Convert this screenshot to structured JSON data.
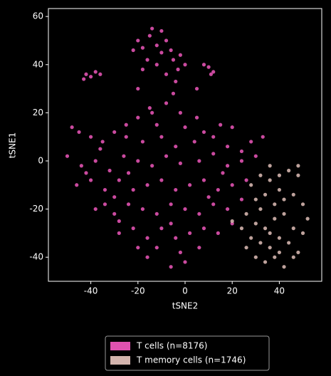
{
  "chart_data": {
    "type": "scatter",
    "xlabel": "tSNE2",
    "ylabel": "tSNE1",
    "xlim": [
      -58,
      58
    ],
    "ylim": [
      -50,
      63.3
    ],
    "xticks": [
      -40,
      -20,
      0,
      20,
      40
    ],
    "yticks": [
      -40,
      -20,
      0,
      20,
      40,
      60
    ],
    "legend": "bottom",
    "series": [
      {
        "name": "T cells (n=8176)",
        "color": "#e052b0",
        "x": [
          -20,
          -18,
          -15,
          -12,
          -10,
          -8,
          -5,
          -3,
          -16,
          -22,
          -14,
          -10,
          -6,
          -2,
          0,
          -12,
          -18,
          -8,
          -4,
          -20,
          -42,
          -40,
          -38,
          -43,
          -36,
          10,
          12,
          8,
          11,
          -15,
          -8,
          -2,
          5,
          -20,
          -12,
          0,
          8,
          15,
          -25,
          -45,
          -40,
          -35,
          -30,
          -25,
          -18,
          -10,
          -4,
          4,
          12,
          18,
          24,
          28,
          33,
          -48,
          -50,
          -44,
          -38,
          -32,
          -26,
          -20,
          -14,
          -8,
          -2,
          6,
          12,
          18,
          24,
          30,
          -42,
          -46,
          -40,
          -34,
          -28,
          -22,
          -16,
          -10,
          -4,
          2,
          8,
          14,
          20,
          26,
          -30,
          -38,
          -30,
          -24,
          -18,
          -12,
          -6,
          0,
          6,
          12,
          18,
          24,
          -34,
          -28,
          -22,
          -16,
          -10,
          -4,
          2,
          8,
          14,
          20,
          -20,
          -12,
          -2,
          6,
          -16,
          0,
          -6,
          -5,
          5,
          -28,
          -24,
          -6,
          10,
          -36,
          16,
          20,
          -14
        ],
        "values": [
          50,
          47,
          52,
          48,
          45,
          50,
          42,
          38,
          42,
          46,
          55,
          54,
          46,
          44,
          40,
          40,
          38,
          36,
          33,
          30,
          36,
          35,
          37,
          34,
          36,
          39,
          37,
          40,
          36,
          22,
          24,
          20,
          18,
          18,
          15,
          14,
          12,
          15,
          15,
          12,
          10,
          8,
          12,
          10,
          8,
          10,
          6,
          8,
          10,
          6,
          4,
          8,
          10,
          14,
          2,
          -2,
          0,
          -4,
          2,
          0,
          -2,
          2,
          -1,
          0,
          3,
          -2,
          0,
          2,
          -5,
          -10,
          -8,
          -12,
          -8,
          -12,
          -10,
          -8,
          -12,
          -10,
          -8,
          -12,
          -10,
          -8,
          -15,
          -20,
          -22,
          -18,
          -20,
          -22,
          -18,
          -20,
          -22,
          -18,
          -20,
          -16,
          -18,
          -30,
          -28,
          -32,
          -28,
          -32,
          -30,
          -28,
          -30,
          -26,
          -36,
          -36,
          -38,
          -36,
          -40,
          -42,
          -44,
          28,
          30,
          -25,
          -5,
          -26,
          -15,
          5,
          -5,
          14,
          20
        ]
      },
      {
        "name": "T memory cells (n=1746)",
        "color": "#d3b4ad",
        "x": [
          28,
          32,
          36,
          40,
          44,
          48,
          30,
          34,
          38,
          42,
          46,
          50,
          52,
          26,
          30,
          34,
          38,
          42,
          46,
          50,
          24,
          28,
          32,
          36,
          40,
          44,
          48,
          30,
          34,
          38,
          42,
          46,
          32,
          36,
          40,
          26,
          48,
          36,
          20,
          40
        ],
        "values": [
          -10,
          -6,
          -8,
          -12,
          -4,
          -6,
          -16,
          -14,
          -18,
          -16,
          -14,
          -18,
          -24,
          -22,
          -26,
          -28,
          -24,
          -22,
          -28,
          -30,
          -28,
          -32,
          -34,
          -36,
          -32,
          -34,
          -38,
          -40,
          -42,
          -40,
          -44,
          -40,
          -20,
          -30,
          -38,
          -36,
          -2,
          -2,
          -25,
          -6
        ]
      }
    ]
  }
}
